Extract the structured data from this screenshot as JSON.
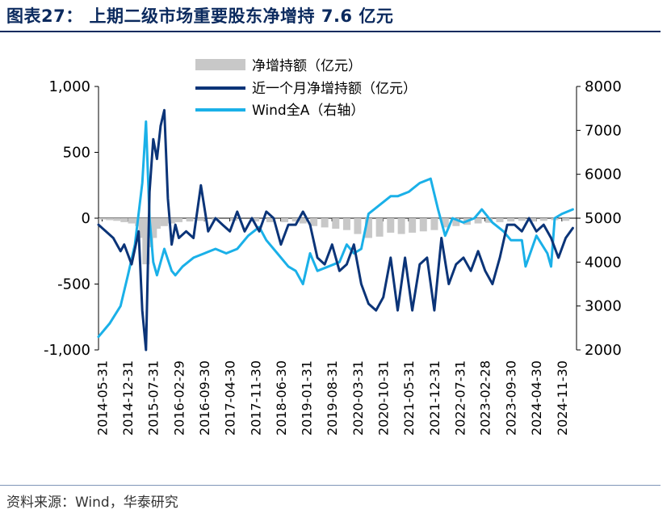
{
  "header": {
    "title": "图表27： 上期二级市场重要股东净增持 7.6 亿元"
  },
  "footer": {
    "source": "资料来源：Wind，华泰研究"
  },
  "chart_data": {
    "type": "line",
    "title": "",
    "x_tick_labels": [
      "2014-05-31",
      "2014-12-31",
      "2015-07-31",
      "2016-02-29",
      "2016-09-30",
      "2017-04-30",
      "2017-11-30",
      "2018-06-30",
      "2019-01-31",
      "2019-08-31",
      "2020-03-31",
      "2020-10-31",
      "2021-05-31",
      "2021-12-31",
      "2022-07-31",
      "2023-02-28",
      "2023-09-30",
      "2024-04-30",
      "2024-11-30"
    ],
    "left_axis": {
      "ylim": [
        -1000,
        1000
      ],
      "ticks": [
        -1000,
        -500,
        0,
        500,
        1000
      ],
      "tick_labels": [
        "-1,000",
        "-500",
        "0",
        "500",
        "1,000"
      ]
    },
    "right_axis": {
      "ylim": [
        2000,
        8000
      ],
      "ticks": [
        2000,
        3000,
        4000,
        5000,
        6000,
        7000,
        8000
      ],
      "tick_labels": [
        "2000",
        "3000",
        "4000",
        "5000",
        "6000",
        "7000",
        "8000"
      ]
    },
    "legend": [
      "净增持额（亿元）",
      "近一个月净增持额（亿元）",
      "Wind全A（右轴）"
    ],
    "legend_position": "top-center",
    "grid": false,
    "colors": {
      "weekly": "#c8c8c8",
      "monthly": "#0b3478",
      "wind": "#1ab0e8"
    },
    "series": [
      {
        "name": "净增持额（亿元）",
        "axis": "left",
        "style": "bar",
        "x": [
          "2014-06",
          "2014-08",
          "2014-10",
          "2014-12",
          "2015-02",
          "2015-04",
          "2015-05",
          "2015-06",
          "2015-07",
          "2015-08",
          "2015-09",
          "2015-11",
          "2016-01",
          "2016-03",
          "2016-06",
          "2016-09",
          "2017-01",
          "2017-06",
          "2017-12",
          "2018-04",
          "2018-08",
          "2018-11",
          "2019-01",
          "2019-04",
          "2019-07",
          "2019-10",
          "2020-01",
          "2020-04",
          "2020-07",
          "2020-10",
          "2021-01",
          "2021-04",
          "2021-07",
          "2021-10",
          "2022-01",
          "2022-04",
          "2022-07",
          "2022-10",
          "2023-01",
          "2023-04",
          "2023-07",
          "2023-10",
          "2024-01",
          "2024-04",
          "2024-07",
          "2024-10",
          "2025-01"
        ],
        "values": [
          -10,
          -15,
          -20,
          -30,
          -40,
          -60,
          -150,
          -350,
          -220,
          -150,
          -80,
          -60,
          -40,
          -30,
          -25,
          -20,
          -15,
          -20,
          -25,
          -30,
          -30,
          -25,
          -40,
          -60,
          -70,
          -80,
          -90,
          -120,
          -150,
          -140,
          -110,
          -120,
          -110,
          -100,
          -90,
          -70,
          -60,
          -50,
          -40,
          -35,
          -30,
          -25,
          -20,
          -25,
          -20,
          -15,
          -20
        ]
      },
      {
        "name": "近一个月净增持额（亿元）",
        "axis": "left",
        "x": [
          "2014-05",
          "2014-07",
          "2014-09",
          "2014-11",
          "2014-12",
          "2015-02",
          "2015-04",
          "2015-05",
          "2015-06",
          "2015-07",
          "2015-08",
          "2015-09",
          "2015-10",
          "2015-11",
          "2015-12",
          "2016-01",
          "2016-02",
          "2016-03",
          "2016-05",
          "2016-07",
          "2016-09",
          "2016-11",
          "2017-01",
          "2017-03",
          "2017-05",
          "2017-07",
          "2017-09",
          "2017-11",
          "2018-01",
          "2018-03",
          "2018-05",
          "2018-07",
          "2018-09",
          "2018-11",
          "2019-01",
          "2019-03",
          "2019-05",
          "2019-07",
          "2019-09",
          "2019-11",
          "2020-01",
          "2020-03",
          "2020-05",
          "2020-07",
          "2020-09",
          "2020-11",
          "2021-01",
          "2021-03",
          "2021-05",
          "2021-07",
          "2021-09",
          "2021-11",
          "2022-01",
          "2022-03",
          "2022-05",
          "2022-07",
          "2022-09",
          "2022-11",
          "2023-01",
          "2023-03",
          "2023-05",
          "2023-07",
          "2023-09",
          "2023-11",
          "2024-01",
          "2024-03",
          "2024-05",
          "2024-07",
          "2024-09",
          "2024-11",
          "2025-01",
          "2025-03"
        ],
        "values": [
          -50,
          -100,
          -150,
          -250,
          -200,
          -350,
          -100,
          -700,
          -1000,
          200,
          600,
          450,
          700,
          820,
          150,
          -200,
          -50,
          -150,
          -100,
          -150,
          250,
          -100,
          0,
          -50,
          -100,
          50,
          -100,
          0,
          -100,
          50,
          0,
          -200,
          -50,
          -50,
          50,
          -50,
          -300,
          -350,
          -200,
          -400,
          -350,
          -200,
          -500,
          -650,
          -700,
          -600,
          -300,
          -700,
          -300,
          -700,
          -350,
          -300,
          -700,
          -150,
          -500,
          -350,
          -300,
          -400,
          -250,
          -400,
          -500,
          -300,
          -50,
          -50,
          -100,
          0,
          -100,
          -50,
          -150,
          -300,
          -150,
          -75
        ]
      },
      {
        "name": "Wind全A（右轴）",
        "axis": "right",
        "x": [
          "2014-05",
          "2014-08",
          "2014-11",
          "2015-01",
          "2015-03",
          "2015-05",
          "2015-06",
          "2015-07",
          "2015-08",
          "2015-09",
          "2015-11",
          "2016-01",
          "2016-02",
          "2016-04",
          "2016-07",
          "2016-10",
          "2017-01",
          "2017-04",
          "2017-07",
          "2017-10",
          "2018-01",
          "2018-03",
          "2018-06",
          "2018-09",
          "2018-11",
          "2019-01",
          "2019-03",
          "2019-05",
          "2019-08",
          "2019-11",
          "2020-01",
          "2020-03",
          "2020-05",
          "2020-07",
          "2020-10",
          "2021-01",
          "2021-03",
          "2021-06",
          "2021-09",
          "2021-12",
          "2022-02",
          "2022-04",
          "2022-06",
          "2022-09",
          "2022-12",
          "2023-02",
          "2023-05",
          "2023-08",
          "2023-10",
          "2024-01",
          "2024-02",
          "2024-05",
          "2024-08",
          "2024-09",
          "2024-10",
          "2024-12",
          "2025-03"
        ],
        "values": [
          2300,
          2600,
          3000,
          3700,
          4400,
          5800,
          7200,
          5000,
          4000,
          3700,
          4300,
          3800,
          3700,
          3900,
          4100,
          4200,
          4300,
          4200,
          4300,
          4600,
          4800,
          4500,
          4200,
          3900,
          3800,
          3500,
          4200,
          3800,
          3900,
          4000,
          4400,
          4200,
          4300,
          5100,
          5300,
          5500,
          5500,
          5600,
          5800,
          5900,
          5200,
          4600,
          5000,
          4900,
          5000,
          5200,
          4900,
          4700,
          4500,
          4500,
          3900,
          4600,
          4200,
          3900,
          5000,
          5100,
          5200
        ]
      }
    ]
  }
}
